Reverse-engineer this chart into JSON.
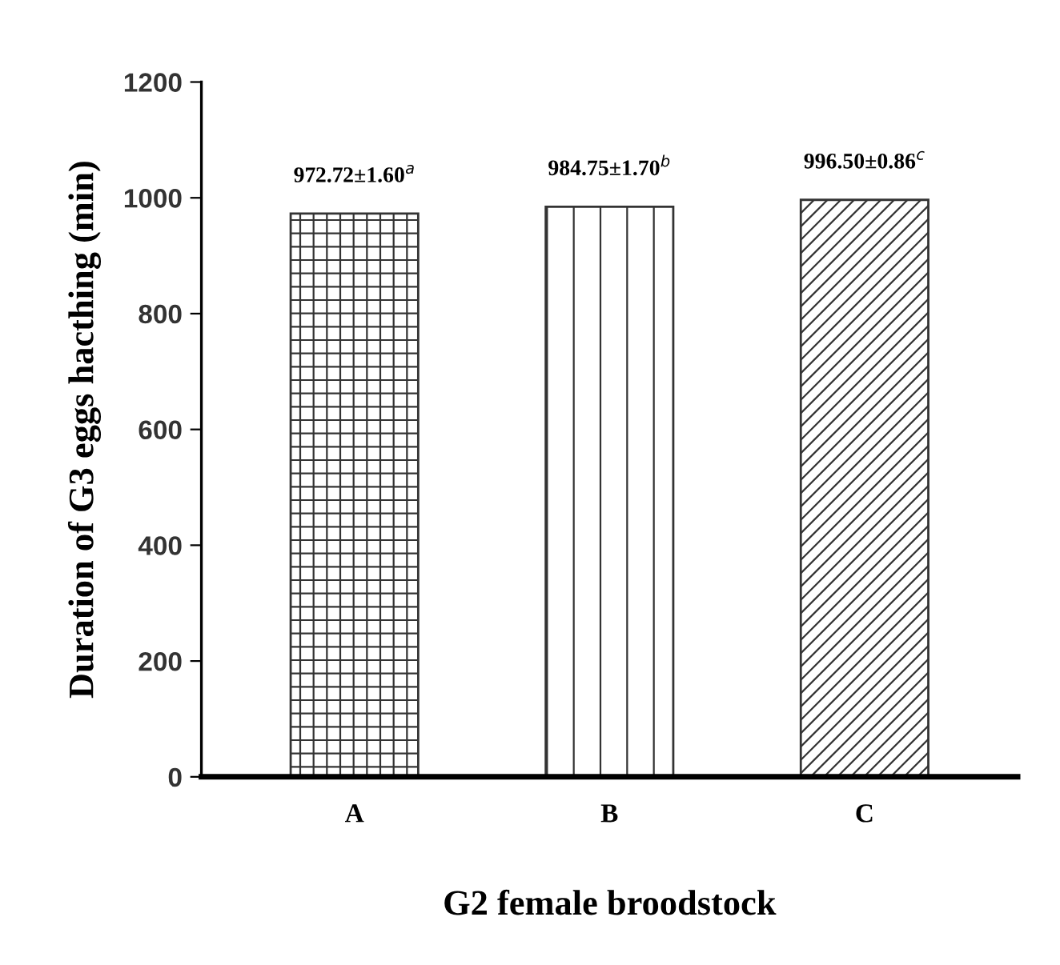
{
  "chart_data": {
    "type": "bar",
    "xlabel": "G2 female broodstock",
    "ylabel": "Duration of G3 eggs hacthing (min)",
    "categories": [
      "A",
      "B",
      "C"
    ],
    "values": [
      972.72,
      984.75,
      996.5
    ],
    "colors": [
      "#333333",
      "#333333",
      "#333333"
    ],
    "value_labels": [
      "972.72±1.60$^{a}$",
      "984.75±1.70$^{b}$",
      "996.50±0.86$^{c}$"
    ],
    "ylim": [
      0,
      1200
    ],
    "yticks": [
      0,
      200,
      400,
      600,
      800,
      1000,
      1200
    ],
    "grid": false,
    "legend": false
  }
}
